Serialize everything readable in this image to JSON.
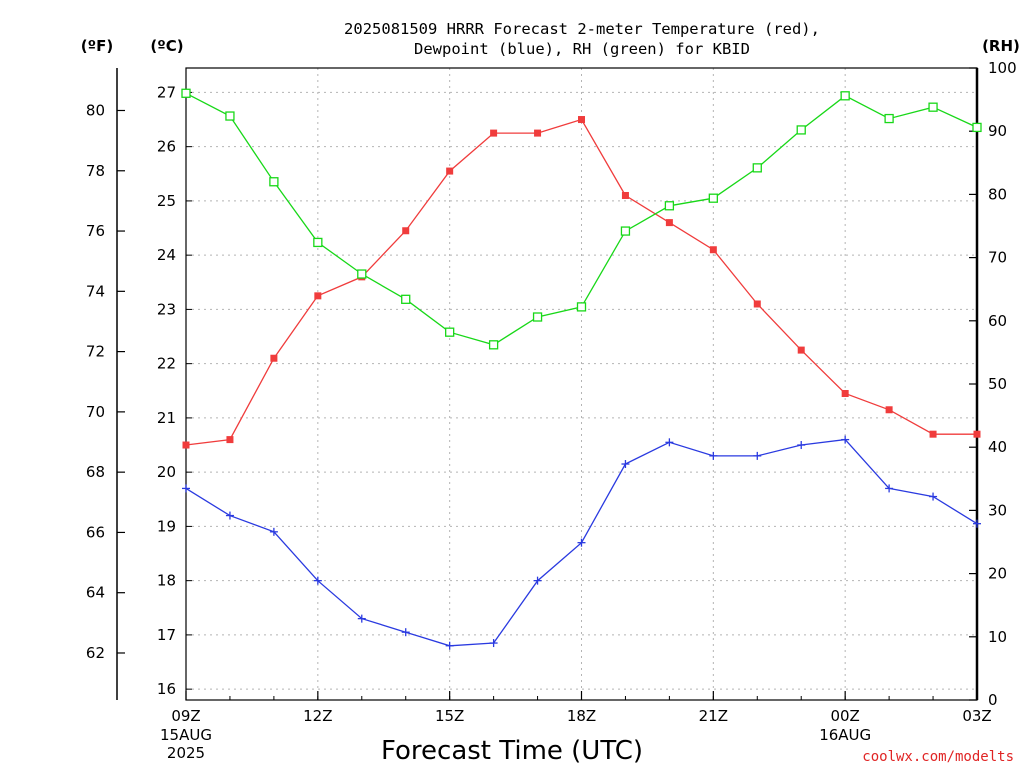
{
  "colors": {
    "temperature": "#f03c3c",
    "dewpoint": "#2a3ae0",
    "rh": "#18d818",
    "credit": "#e02424",
    "grid": "#b4b4b4"
  },
  "chart_data": {
    "type": "line",
    "title_line1": "2025081509 HRRR Forecast 2-meter Temperature (red),",
    "title_line2": "Dewpoint (blue), RH (green) for KBID",
    "xlabel": "Forecast Time (UTC)",
    "y_left_f_label": "(ºF)",
    "y_left_c_label": "(ºC)",
    "y_right_label": "(RH)",
    "ylim_c": [
      15.8,
      27.45
    ],
    "ylim_rh": [
      0,
      100
    ],
    "grid": true,
    "x_hours": [
      9,
      10,
      11,
      12,
      13,
      14,
      15,
      16,
      17,
      18,
      19,
      20,
      21,
      22,
      23,
      24,
      25,
      26,
      27
    ],
    "x_ticks": [
      {
        "hour": 9,
        "label": "09Z",
        "sub1": "15AUG",
        "sub2": "2025"
      },
      {
        "hour": 12,
        "label": "12Z",
        "sub1": "",
        "sub2": ""
      },
      {
        "hour": 15,
        "label": "15Z",
        "sub1": "",
        "sub2": ""
      },
      {
        "hour": 18,
        "label": "18Z",
        "sub1": "",
        "sub2": ""
      },
      {
        "hour": 21,
        "label": "21Z",
        "sub1": "",
        "sub2": ""
      },
      {
        "hour": 24,
        "label": "00Z",
        "sub1": "16AUG",
        "sub2": ""
      },
      {
        "hour": 27,
        "label": "03Z",
        "sub1": "",
        "sub2": ""
      }
    ],
    "y_ticks_c": [
      "16",
      "17",
      "18",
      "19",
      "20",
      "21",
      "22",
      "23",
      "24",
      "25",
      "26",
      "27"
    ],
    "y_ticks_f": [
      "62",
      "64",
      "66",
      "68",
      "70",
      "72",
      "74",
      "76",
      "78",
      "80"
    ],
    "y_ticks_rh": [
      "0",
      "10",
      "20",
      "30",
      "40",
      "50",
      "60",
      "70",
      "80",
      "90",
      "100"
    ],
    "series": [
      {
        "key": "temperature",
        "unit": "C",
        "marker": "square-filled",
        "values": [
          20.5,
          20.6,
          22.1,
          23.25,
          23.6,
          24.45,
          25.55,
          26.25,
          26.25,
          26.5,
          25.1,
          24.6,
          24.1,
          23.1,
          22.25,
          21.45,
          21.15,
          20.7,
          20.7
        ]
      },
      {
        "key": "dewpoint",
        "unit": "C",
        "marker": "plus",
        "values": [
          19.7,
          19.2,
          18.9,
          18.0,
          17.3,
          17.05,
          16.8,
          16.85,
          18.0,
          18.7,
          20.15,
          20.55,
          20.3,
          20.3,
          20.5,
          20.6,
          19.7,
          19.55,
          19.05
        ]
      },
      {
        "key": "rh",
        "unit": "RH",
        "marker": "square-open",
        "values": [
          96,
          92.4,
          82,
          72.4,
          67.4,
          63.4,
          58.2,
          56.2,
          60.6,
          62.2,
          74.2,
          78.2,
          79.4,
          84.2,
          90.2,
          95.6,
          92,
          93.8,
          90.6
        ]
      }
    ]
  },
  "credit": "coolwx.com/modelts"
}
